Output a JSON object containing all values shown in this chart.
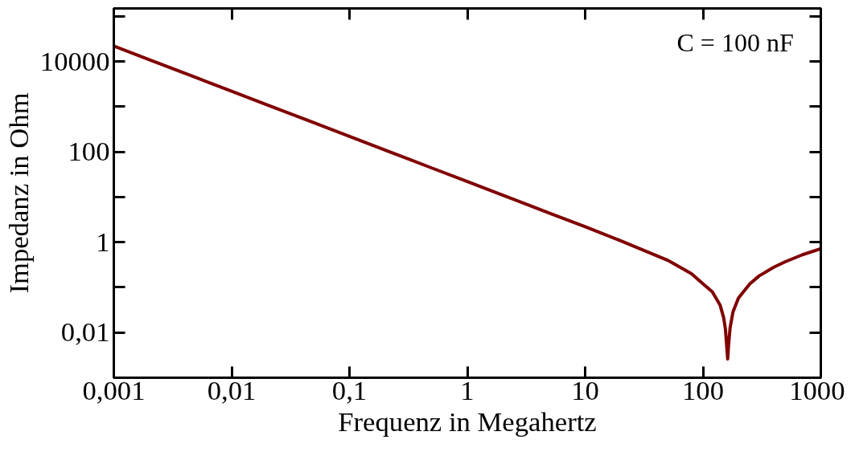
{
  "chart_data": {
    "type": "line",
    "xlabel": "Frequenz in Megahertz",
    "ylabel": "Impedanz in Ohm",
    "log": "xy",
    "annotations": [
      "C = 100 nF"
    ],
    "x": [
      0.001,
      0.002,
      0.005,
      0.01,
      0.02,
      0.05,
      0.1,
      0.2,
      0.5,
      1,
      2,
      5,
      10,
      20,
      50,
      80,
      100,
      120,
      140,
      150,
      155,
      160,
      162,
      165,
      170,
      180,
      200,
      250,
      300,
      400,
      500,
      700,
      1000
    ],
    "series": [
      {
        "color": "#800000",
        "values": [
          22000,
          11000,
          4400,
          2200,
          1100,
          440,
          220,
          110,
          44,
          22,
          11,
          4.4,
          2.2,
          1.08,
          0.4,
          0.2,
          0.12,
          0.08,
          0.04,
          0.021,
          0.012,
          0.004,
          0.0026,
          0.0055,
          0.013,
          0.029,
          0.058,
          0.12,
          0.18,
          0.28,
          0.37,
          0.53,
          0.72
        ]
      }
    ],
    "xlim": [
      0.001,
      1000
    ],
    "ylim": [
      0.001,
      150000
    ],
    "xticks": [
      {
        "value": 0.001,
        "label": "0,001"
      },
      {
        "value": 0.01,
        "label": "0,01"
      },
      {
        "value": 0.1,
        "label": "0,1"
      },
      1,
      10,
      100,
      1000
    ],
    "yticks": [
      {
        "value": 0.001,
        "label": null
      },
      {
        "value": 0.01,
        "label": "0,01"
      },
      {
        "value": 0.1,
        "label": null
      },
      1,
      {
        "value": 10,
        "label": null
      },
      100,
      {
        "value": 1000,
        "label": null
      },
      10000,
      {
        "value": 100000,
        "label": null
      }
    ],
    "grid": false,
    "line_style": "solid",
    "marker": "none"
  }
}
